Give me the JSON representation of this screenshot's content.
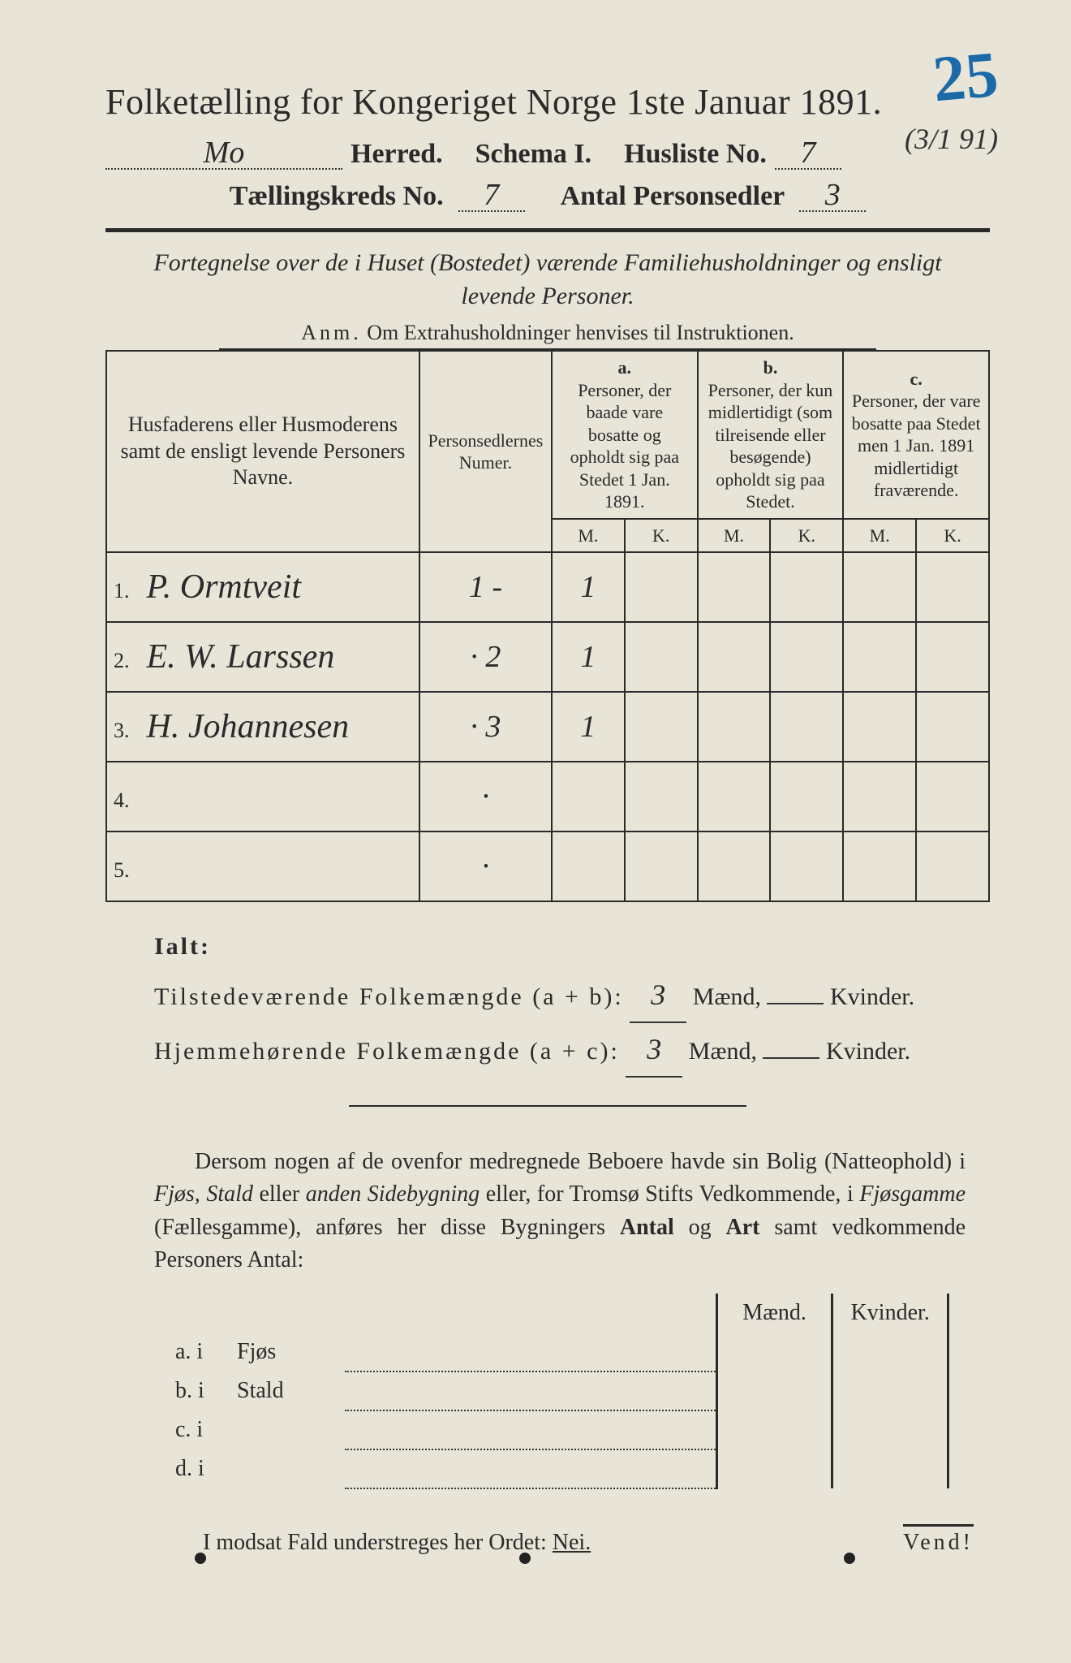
{
  "colors": {
    "paper": "#e8e4d8",
    "ink": "#2a2a2a",
    "blue_pencil": "#1a6aa8"
  },
  "corner": {
    "number": "25",
    "date": "(3/1 91)"
  },
  "title": "Folketælling for Kongeriget Norge 1ste Januar 1891.",
  "header": {
    "herred_value": "Mo",
    "herred_label": "Herred.",
    "schema_label": "Schema I.",
    "husliste_label": "Husliste No.",
    "husliste_value": "7",
    "kreds_label": "Tællingskreds No.",
    "kreds_value": "7",
    "sedler_label": "Antal Personsedler",
    "sedler_value": "3"
  },
  "subtitle": "Fortegnelse over de i Huset (Bostedet) værende Familiehusholdninger og ensligt levende Personer.",
  "anm_label": "Anm.",
  "anm_text": "Om Extrahusholdninger henvises til Instruktionen.",
  "table": {
    "col_name": "Husfaderens eller Husmoderens samt de ensligt levende Personers Navne.",
    "col_num": "Personsedlernes Numer.",
    "col_a_top": "a.",
    "col_a": "Personer, der baade vare bosatte og opholdt sig paa Stedet 1 Jan. 1891.",
    "col_b_top": "b.",
    "col_b": "Personer, der kun midlertidigt (som tilreisende eller besøgende) opholdt sig paa Stedet.",
    "col_c_top": "c.",
    "col_c": "Personer, der vare bosatte paa Stedet men 1 Jan. 1891 midlertidigt fraværende.",
    "m": "M.",
    "k": "K.",
    "rows": [
      {
        "n": "1.",
        "name": "P. Ormtveit",
        "num": "1 -",
        "aM": "1",
        "aK": "",
        "bM": "",
        "bK": "",
        "cM": "",
        "cK": ""
      },
      {
        "n": "2.",
        "name": "E. W. Larssen",
        "num": "· 2",
        "aM": "1",
        "aK": "",
        "bM": "",
        "bK": "",
        "cM": "",
        "cK": ""
      },
      {
        "n": "3.",
        "name": "H. Johannesen",
        "num": "· 3",
        "aM": "1",
        "aK": "",
        "bM": "",
        "bK": "",
        "cM": "",
        "cK": ""
      },
      {
        "n": "4.",
        "name": "",
        "num": "·",
        "aM": "",
        "aK": "",
        "bM": "",
        "bK": "",
        "cM": "",
        "cK": ""
      },
      {
        "n": "5.",
        "name": "",
        "num": "·",
        "aM": "",
        "aK": "",
        "bM": "",
        "bK": "",
        "cM": "",
        "cK": ""
      }
    ]
  },
  "totals": {
    "ialt": "Ialt:",
    "line1_label": "Tilstedeværende Folkemængde (a + b):",
    "line1_m": "3",
    "line1_k": "",
    "line2_label": "Hjemmehørende Folkemængde (a + c):",
    "line2_m": "3",
    "line2_k": "",
    "maend": "Mænd,",
    "kvinder": "Kvinder."
  },
  "paragraph": {
    "p1": "Dersom nogen af de ovenfor medregnede Beboere havde sin Bolig (Natteophold) i ",
    "p2": "Fjøs, Stald",
    "p3": " eller ",
    "p4": "anden Sidebygning",
    "p5": " eller, for Tromsø Stifts Vedkommende, i ",
    "p6": "Fjøsgamme",
    "p7": " (Fællesgamme), anføres her disse Bygningers ",
    "p8": "Antal",
    "p9": " og ",
    "p10": "Art",
    "p11": " samt vedkommende Personers Antal:"
  },
  "bottom_table": {
    "maend": "Mænd.",
    "kvinder": "Kvinder.",
    "rows": [
      {
        "label": "a.  i",
        "type": "Fjøs"
      },
      {
        "label": "b.  i",
        "type": "Stald"
      },
      {
        "label": "c.  i",
        "type": ""
      },
      {
        "label": "d.  i",
        "type": ""
      }
    ]
  },
  "modsat": "I modsat Fald understreges her Ordet: ",
  "nei": "Nei.",
  "vend": "Vend!"
}
